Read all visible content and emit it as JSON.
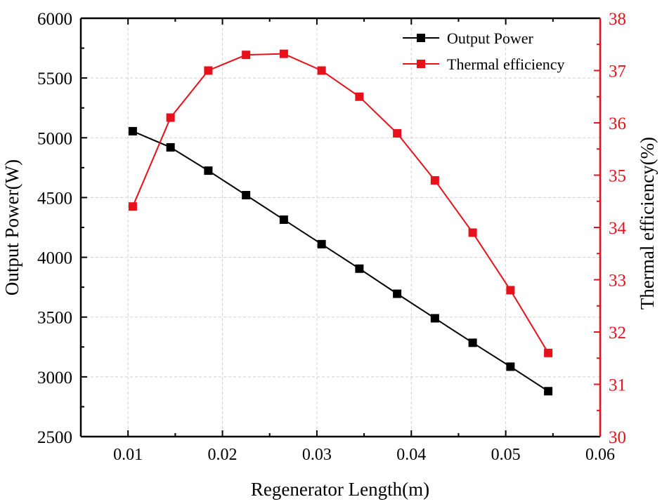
{
  "chart_data": {
    "type": "line",
    "xlabel": "Regenerator Length(m)",
    "ylabel": "Output Power(W)",
    "y2label": "Thermal efficiency(%)",
    "xlim": [
      0.005,
      0.06
    ],
    "ylim": [
      2500,
      6000
    ],
    "y2lim": [
      30,
      38
    ],
    "grid": true,
    "legend_position": "top-right",
    "x_ticks": [
      "0.01",
      "0.02",
      "0.03",
      "0.04",
      "0.05",
      "0.06"
    ],
    "y_ticks": [
      "2500",
      "3000",
      "3500",
      "4000",
      "4500",
      "5000",
      "5500",
      "6000"
    ],
    "y2_ticks": [
      "30",
      "31",
      "32",
      "33",
      "34",
      "35",
      "36",
      "37",
      "38"
    ],
    "x": [
      0.0105,
      0.0145,
      0.0185,
      0.0225,
      0.0265,
      0.0305,
      0.0345,
      0.0385,
      0.0425,
      0.0465,
      0.0505,
      0.0545
    ],
    "series": [
      {
        "name": "Output Power",
        "axis": "left",
        "color": "#000000",
        "values": [
          5055,
          4920,
          4725,
          4520,
          4315,
          4110,
          3905,
          3695,
          3490,
          3285,
          3085,
          2880
        ]
      },
      {
        "name": "Thermal efficiency",
        "axis": "right",
        "color": "#e8101a",
        "values": [
          34.4,
          36.1,
          37.0,
          37.3,
          37.32,
          37.0,
          36.5,
          35.8,
          34.9,
          33.9,
          32.8,
          31.6
        ]
      }
    ]
  }
}
